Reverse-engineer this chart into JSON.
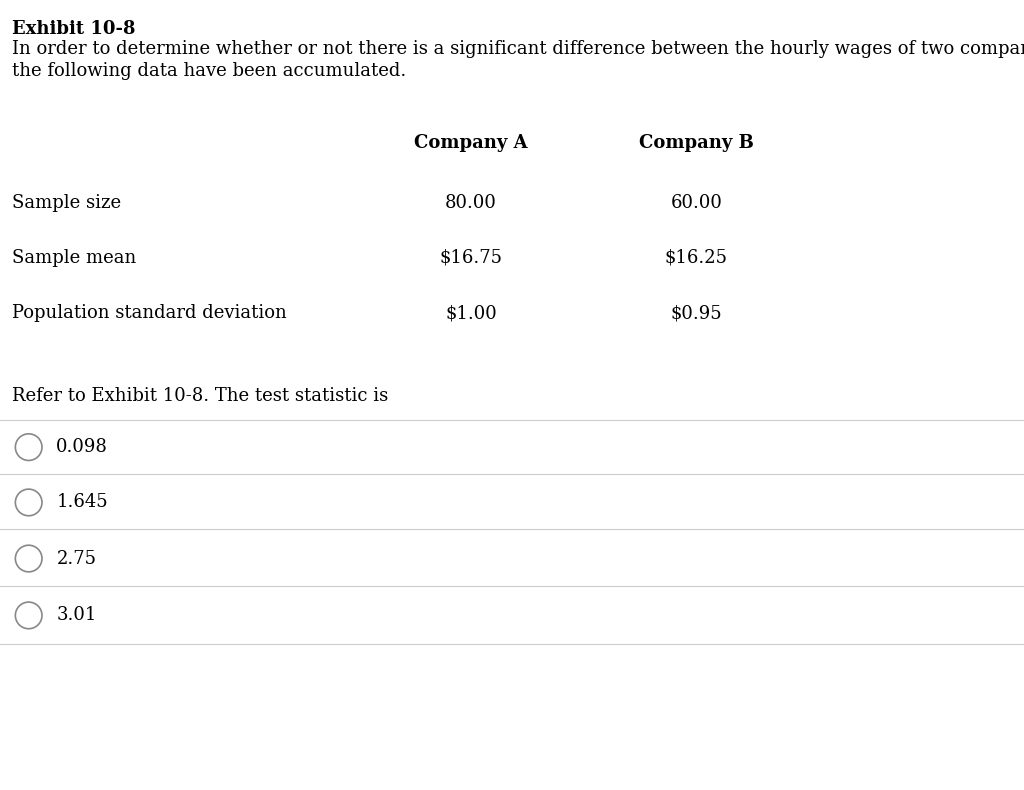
{
  "title": "Exhibit 10-8",
  "description_line1": "In order to determine whether or not there is a significant difference between the hourly wages of two companies,",
  "description_line2": "the following data have been accumulated.",
  "col_headers": [
    "Company A",
    "Company B"
  ],
  "row_labels": [
    "Sample size",
    "Sample mean",
    "Population standard deviation"
  ],
  "company_a_values": [
    "80.00",
    "$16.75",
    "$1.00"
  ],
  "company_b_values": [
    "60.00",
    "$16.25",
    "$0.95"
  ],
  "refer_text": "Refer to Exhibit 10-8. The test statistic is",
  "options": [
    "0.098",
    "1.645",
    "2.75",
    "3.01"
  ],
  "bg_color": "#ffffff",
  "text_color": "#000000",
  "line_color": "#cccccc",
  "font_size": 13,
  "title_font_size": 13,
  "header_font_size": 13
}
